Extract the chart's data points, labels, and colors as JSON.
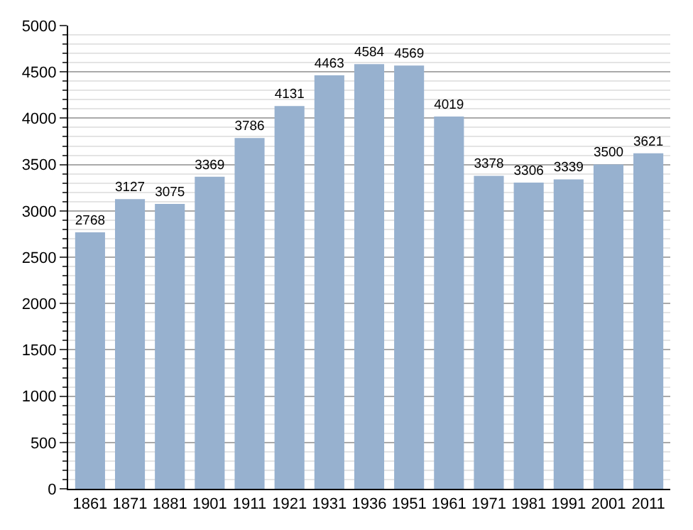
{
  "chart_data": {
    "type": "bar",
    "categories": [
      "1861",
      "1871",
      "1881",
      "1901",
      "1911",
      "1921",
      "1931",
      "1936",
      "1951",
      "1961",
      "1971",
      "1981",
      "1991",
      "2001",
      "2011"
    ],
    "values": [
      2768,
      3127,
      3075,
      3369,
      3786,
      4131,
      4463,
      4584,
      4569,
      4019,
      3378,
      3306,
      3339,
      3500,
      3621
    ],
    "color": "#97b1cf",
    "data_labels": true,
    "grid": true,
    "ylim": [
      0,
      5000
    ],
    "yticks": [
      0,
      500,
      1000,
      1500,
      2000,
      2500,
      3000,
      3500,
      4000,
      4500,
      5000
    ]
  }
}
